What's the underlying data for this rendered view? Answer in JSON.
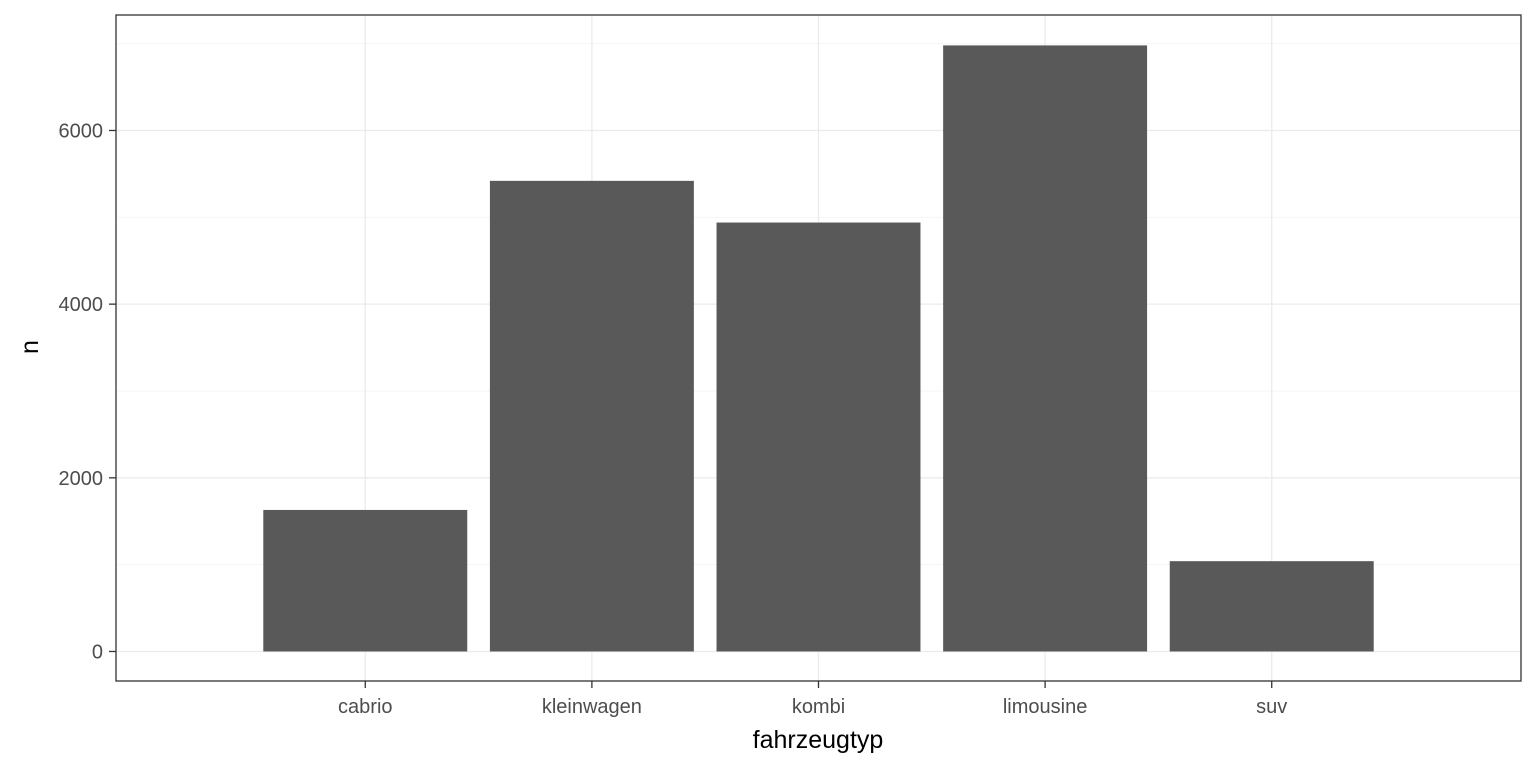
{
  "chart_data": {
    "type": "bar",
    "categories": [
      "cabrio",
      "kleinwagen",
      "kombi",
      "limousine",
      "suv"
    ],
    "values": [
      1630,
      5420,
      4940,
      6980,
      1040
    ],
    "title": "",
    "xlabel": "fahrzeugtyp",
    "ylabel": "n",
    "ylim": [
      -340,
      7330
    ],
    "yticks": [
      0,
      2000,
      4000,
      6000
    ],
    "grid": true,
    "colors": {
      "bar": "#595959",
      "grid_major": "#ebebeb",
      "grid_minor": "#f5f5f5",
      "panel_border": "#333333",
      "background": "#ffffff"
    }
  }
}
